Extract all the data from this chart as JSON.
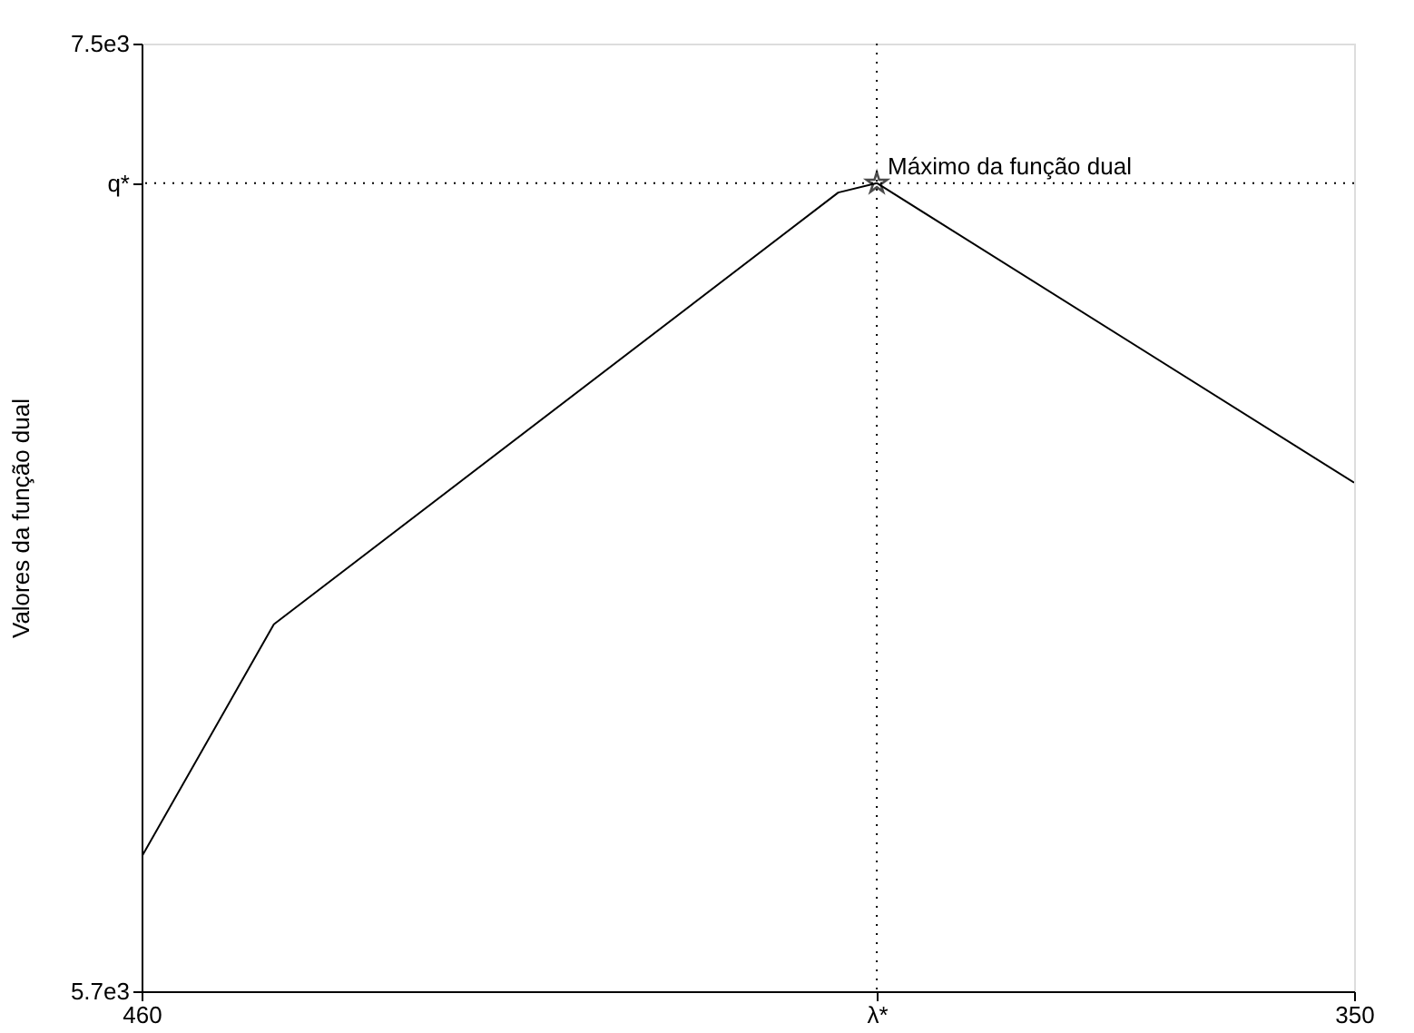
{
  "chart_data": {
    "type": "line",
    "ylabel": "Valores da função dual",
    "xlim": [
      460,
      350
    ],
    "xticks": [
      460,
      {
        "value": 393.3,
        "label": "λ*"
      },
      350
    ],
    "ylim": [
      5700,
      7500
    ],
    "yticks": [
      {
        "value": 5700,
        "label": "5.7e3"
      },
      {
        "value": 7235,
        "label": "q*"
      },
      {
        "value": 7500,
        "label": "7.5e3"
      }
    ],
    "series": [
      {
        "color": "#000000",
        "x": [
          460,
          448.0,
          396.8,
          393.3,
          350
        ],
        "values": [
          5955,
          6397,
          7217,
          7235,
          6666
        ],
        "marker": "none",
        "line_style": "solid"
      },
      {
        "type": "scatter",
        "color": "#000000",
        "x": [
          393.3
        ],
        "values": [
          7235
        ],
        "marker": "star"
      }
    ],
    "ref_lines": [
      {
        "axis": "x",
        "value": 393.3,
        "color": "#000000",
        "line_style": "dotted"
      },
      {
        "axis": "y",
        "value": 7235,
        "color": "#000000",
        "line_style": "dotted"
      }
    ],
    "annotations": [
      {
        "text": "Máximo da função dual",
        "x": 393.3,
        "y": 7235
      }
    ],
    "grid": false
  }
}
